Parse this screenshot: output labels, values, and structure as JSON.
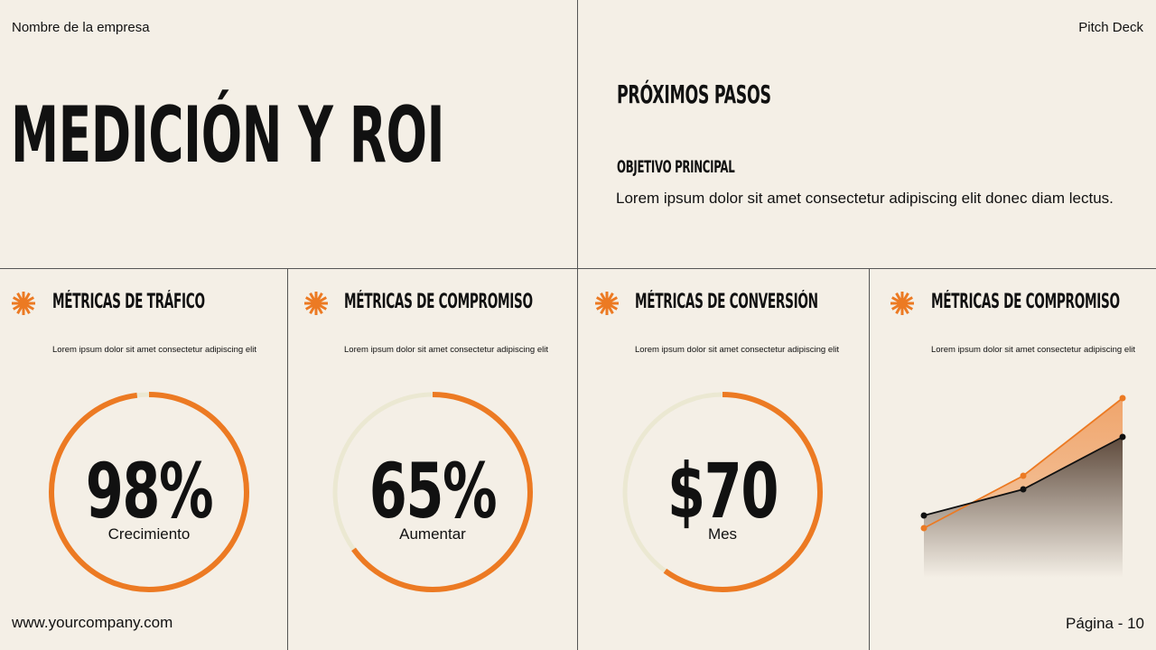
{
  "header": {
    "company": "Nombre de la empresa",
    "deck": "Pitch Deck"
  },
  "title": "Medición y ROI",
  "next_steps": {
    "title": "Próximos pasos",
    "subtitle": "Objetivo principal",
    "text": "Lorem ipsum dolor sit amet consectetur adipiscing elit donec diam lectus."
  },
  "cards": [
    {
      "title": "Métricas de tráfico",
      "desc": "Lorem ipsum dolor sit amet consectetur adipiscing elit",
      "value": "98%",
      "label": "Crecimiento",
      "progress": 0.98
    },
    {
      "title": "Métricas de compromiso",
      "desc": "Lorem ipsum dolor sit amet consectetur adipiscing elit",
      "value": "65%",
      "label": "Aumentar",
      "progress": 0.65
    },
    {
      "title": "Métricas de conversión",
      "desc": "Lorem ipsum dolor sit amet consectetur adipiscing elit",
      "value": "$70",
      "label": "Mes",
      "progress": 0.6
    },
    {
      "title": "Métricas de compromiso",
      "desc": "Lorem ipsum dolor sit amet consectetur adipiscing elit"
    }
  ],
  "chart_data": {
    "type": "area",
    "x": [
      1,
      2,
      3
    ],
    "ylim": [
      0,
      200
    ],
    "grid": false,
    "series": [
      {
        "values": [
          55,
          113,
          199
        ],
        "color": "#ec7a23"
      },
      {
        "values": [
          69,
          98,
          156
        ],
        "color": "#111111"
      }
    ]
  },
  "footer": {
    "url": "www.yourcompany.com",
    "page": "Página - 10"
  },
  "colors": {
    "accent": "#ec7a23",
    "track": "#ebe8d2",
    "background": "#f4efe6"
  }
}
